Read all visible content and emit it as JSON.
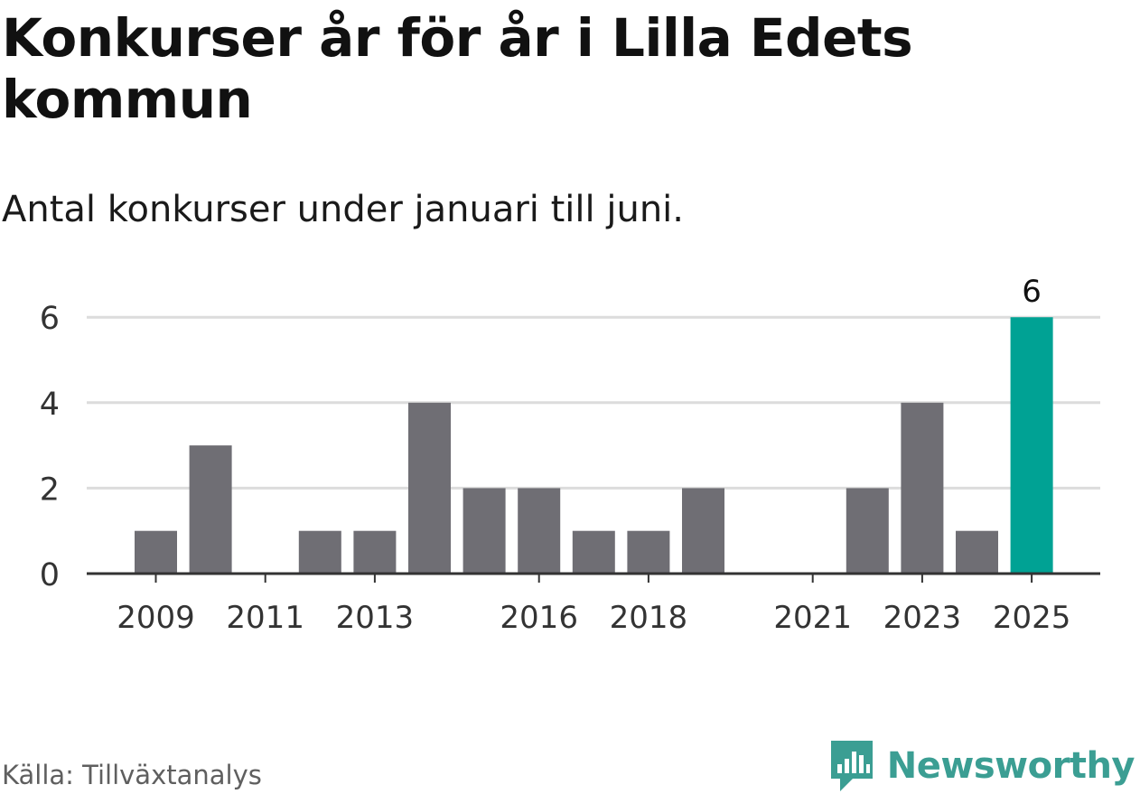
{
  "title": "Konkurser år för år i Lilla Edets kommun",
  "subtitle": "Antal konkurser under januari till juni.",
  "source": "Källa: Tillväxtanalys",
  "brand": {
    "name": "Newsworthy",
    "logo_icon": "newsworthy-bar-chart-logo",
    "color": "#3b9e93"
  },
  "colors": {
    "bar": "#6f6e74",
    "highlight": "#00a294",
    "grid": "#dcdcdc",
    "axis": "#333333",
    "text": "#1a1a1a"
  },
  "chart_data": {
    "type": "bar",
    "x": [
      2009,
      2010,
      2011,
      2012,
      2013,
      2014,
      2015,
      2016,
      2017,
      2018,
      2019,
      2020,
      2021,
      2022,
      2023,
      2024,
      2025
    ],
    "values": [
      1,
      3,
      0,
      1,
      1,
      4,
      2,
      2,
      1,
      1,
      2,
      0,
      0,
      2,
      4,
      1,
      6
    ],
    "highlight_index": 16,
    "x_tick_labels": [
      "2009",
      "2011",
      "2013",
      "2016",
      "2018",
      "2021",
      "2023",
      "2025"
    ],
    "y_ticks": [
      0,
      2,
      4,
      6
    ],
    "ylim": [
      0,
      6
    ],
    "grid": true,
    "data_labels": [
      {
        "x": 2025,
        "label": "6"
      }
    ],
    "xlabel": "",
    "ylabel": ""
  }
}
